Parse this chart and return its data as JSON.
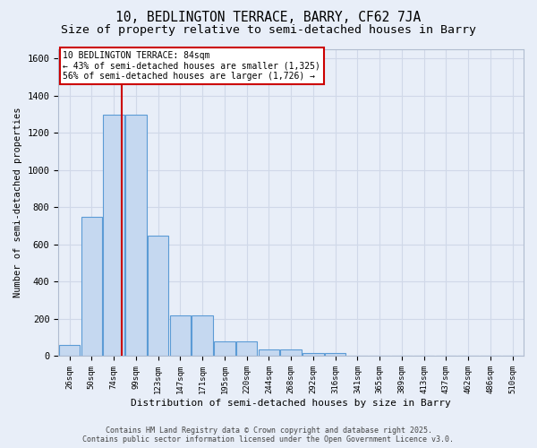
{
  "title1": "10, BEDLINGTON TERRACE, BARRY, CF62 7JA",
  "title2": "Size of property relative to semi-detached houses in Barry",
  "xlabel": "Distribution of semi-detached houses by size in Barry",
  "ylabel": "Number of semi-detached properties",
  "categories": [
    "26sqm",
    "50sqm",
    "74sqm",
    "99sqm",
    "123sqm",
    "147sqm",
    "171sqm",
    "195sqm",
    "220sqm",
    "244sqm",
    "268sqm",
    "292sqm",
    "316sqm",
    "341sqm",
    "365sqm",
    "389sqm",
    "413sqm",
    "437sqm",
    "462sqm",
    "486sqm",
    "510sqm"
  ],
  "values": [
    60,
    750,
    1300,
    1300,
    650,
    220,
    220,
    80,
    80,
    35,
    35,
    15,
    15,
    0,
    0,
    0,
    0,
    0,
    0,
    0,
    0
  ],
  "bar_color": "#c5d8f0",
  "bar_edge_color": "#5b9bd5",
  "ylim": [
    0,
    1650
  ],
  "yticks": [
    0,
    200,
    400,
    600,
    800,
    1000,
    1200,
    1400,
    1600
  ],
  "red_line_x": 2.35,
  "annotation_title": "10 BEDLINGTON TERRACE: 84sqm",
  "annotation_line1": "← 43% of semi-detached houses are smaller (1,325)",
  "annotation_line2": "56% of semi-detached houses are larger (1,726) →",
  "annotation_box_color": "#ffffff",
  "annotation_box_edge": "#cc0000",
  "red_line_color": "#cc0000",
  "footer1": "Contains HM Land Registry data © Crown copyright and database right 2025.",
  "footer2": "Contains public sector information licensed under the Open Government Licence v3.0.",
  "bg_color": "#e8eef8",
  "plot_bg_color": "#e8eef8",
  "grid_color": "#d0d8e8",
  "title_fontsize": 10.5,
  "subtitle_fontsize": 9.5
}
